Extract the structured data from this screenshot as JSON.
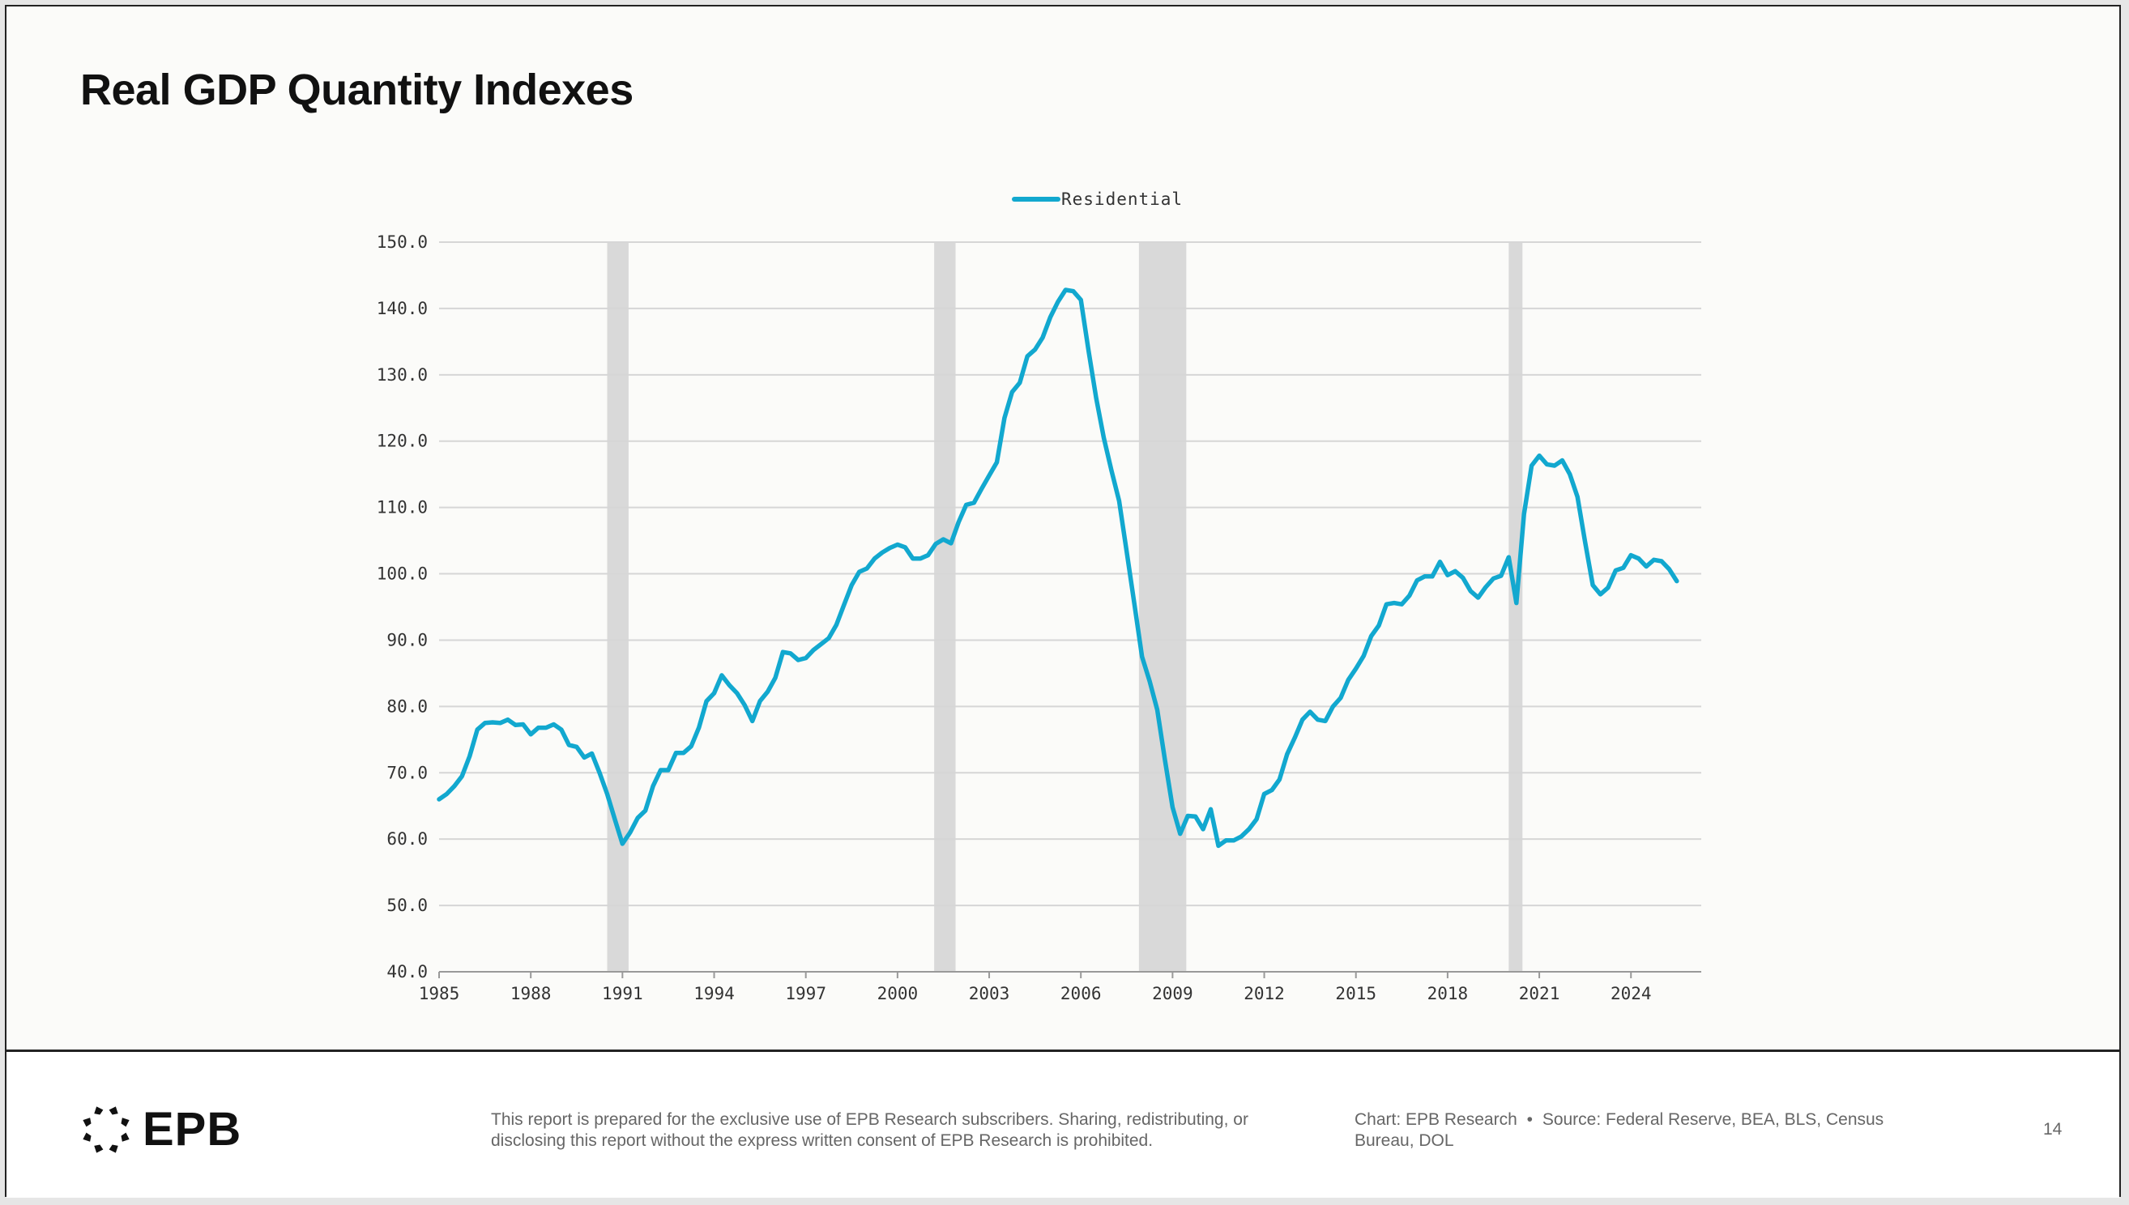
{
  "title": "Real GDP Quantity Indexes",
  "footer": {
    "logo_text": "EPB",
    "disclaimer": "This report is prepared for the exclusive use of EPB Research subscribers. Sharing, redistributing, or disclosing this report without the express written consent of EPB Research is prohibited.",
    "chart_credit": "Chart: EPB Research",
    "separator": "•",
    "source": "Source: Federal Reserve, BEA, BLS, Census Bureau, DOL",
    "page_number": "14"
  },
  "colors": {
    "line": "#12a8cf",
    "recession": "#d9d9d9",
    "grid": "#d6d6d6"
  },
  "chart_data": {
    "type": "line",
    "title": "Real GDP Quantity Indexes",
    "xlabel": "",
    "ylabel": "",
    "xlim": [
      1985,
      2026.3
    ],
    "ylim": [
      40,
      150
    ],
    "yticks": [
      40,
      50,
      60,
      70,
      80,
      90,
      100,
      110,
      120,
      130,
      140,
      150
    ],
    "ytick_labels": [
      "40.0",
      "50.0",
      "60.0",
      "70.0",
      "80.0",
      "90.0",
      "100.0",
      "110.0",
      "120.0",
      "130.0",
      "140.0",
      "150.0"
    ],
    "xticks": [
      1985,
      1988,
      1991,
      1994,
      1997,
      2000,
      2003,
      2006,
      2009,
      2012,
      2015,
      2018,
      2021,
      2024
    ],
    "xtick_labels": [
      "1985",
      "1988",
      "1991",
      "1994",
      "1997",
      "2000",
      "2003",
      "2006",
      "2009",
      "2012",
      "2015",
      "2018",
      "2021",
      "2024"
    ],
    "grid": true,
    "legend_position": "top-center",
    "recessions": [
      [
        1990.5,
        1991.2
      ],
      [
        2001.2,
        2001.9
      ],
      [
        2007.9,
        2009.45
      ],
      [
        2020.0,
        2020.45
      ]
    ],
    "series": [
      {
        "name": "Residential",
        "start": 1985.0,
        "step": 0.25,
        "values": [
          66.0,
          66.8,
          68.0,
          69.5,
          72.5,
          76.5,
          77.5,
          77.6,
          77.5,
          78.0,
          77.2,
          77.3,
          75.8,
          76.8,
          76.8,
          77.3,
          76.5,
          74.2,
          73.9,
          72.3,
          72.9,
          70.0,
          66.8,
          63.0,
          59.3,
          61.0,
          63.2,
          64.3,
          68.0,
          70.4,
          70.4,
          73.0,
          73.0,
          74.0,
          76.8,
          80.8,
          82.0,
          84.7,
          83.2,
          82.0,
          80.2,
          77.8,
          80.8,
          82.2,
          84.3,
          88.2,
          88.0,
          87.0,
          87.3,
          88.5,
          89.4,
          90.3,
          92.3,
          95.3,
          98.3,
          100.3,
          100.8,
          102.3,
          103.2,
          103.9,
          104.4,
          104.0,
          102.3,
          102.3,
          102.8,
          104.5,
          105.2,
          104.6,
          107.8,
          110.4,
          110.7,
          112.8,
          114.8,
          116.8,
          123.5,
          127.4,
          128.8,
          132.8,
          133.8,
          135.6,
          138.7,
          141.0,
          142.8,
          142.6,
          141.3,
          133.7,
          126.5,
          120.5,
          115.6,
          111.0,
          103.3,
          95.5,
          87.5,
          83.8,
          79.5,
          72.0,
          64.8,
          60.8,
          63.5,
          63.4,
          61.5,
          64.5,
          59.0,
          59.8,
          59.8,
          60.4,
          61.5,
          63.0,
          66.8,
          67.4,
          69.0,
          72.8,
          75.3,
          78.0,
          79.2,
          78.0,
          77.8,
          80.0,
          81.3,
          84.0,
          85.7,
          87.6,
          90.6,
          92.2,
          95.4,
          95.6,
          95.4,
          96.7,
          99.0,
          99.6,
          99.6,
          101.8,
          99.8,
          100.4,
          99.4,
          97.4,
          96.4,
          98.0,
          99.3,
          99.7,
          102.5,
          95.6,
          109.0,
          116.3,
          117.8,
          116.5,
          116.3,
          117.1,
          115.0,
          111.6,
          104.8,
          98.3,
          96.9,
          97.9,
          100.5,
          100.9,
          102.8,
          102.3,
          101.1,
          102.1,
          101.9,
          100.7,
          98.9
        ]
      }
    ]
  }
}
